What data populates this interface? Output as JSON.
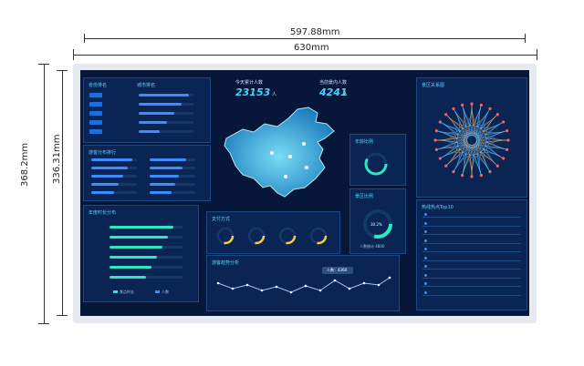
{
  "dimensions": {
    "inner_width": "597.88mm",
    "outer_width": "630mm",
    "outer_height": "368.2mm",
    "inner_height": "336.31mm"
  },
  "dashboard": {
    "panel_titles": {
      "top_left_a": "省份排名",
      "top_left_b": "城市排名",
      "mid_left": "游客分布排行",
      "bottom_left": "年度时长分布",
      "right_top": "景区关系图",
      "right_bottom": "热线热点Top10",
      "mid_right_a": "年龄比例",
      "mid_right_b": "景区比例",
      "payment": "支付方式",
      "trend": "游客趋势分析"
    },
    "stats": {
      "today_label": "今天累计人数",
      "today_value": "23153",
      "today_unit": "人",
      "current_label": "当前景内人数",
      "current_value": "4241",
      "current_unit": "人"
    },
    "pie_label": "人数统计 4800",
    "pie_percent": "30.2%",
    "tooltip": "人数：4360",
    "legend": [
      "景点时长",
      "人数"
    ]
  },
  "colors": {
    "screen_bg": "#07173a",
    "accent": "#4fd2ff",
    "bar": "#3d8bff",
    "line": "#9ec8ff"
  }
}
